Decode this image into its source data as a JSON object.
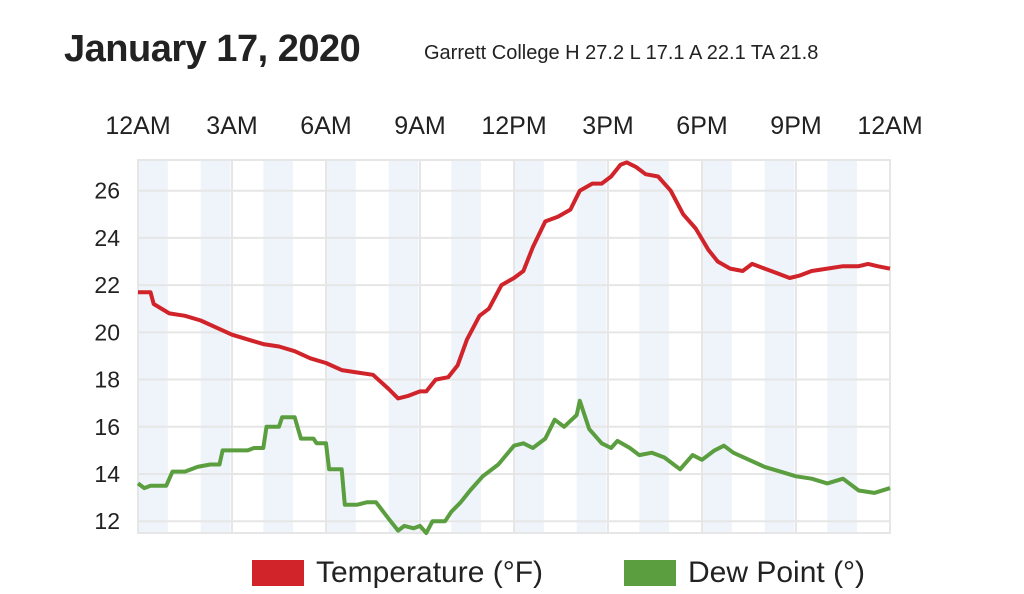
{
  "header": {
    "title": "January 17, 2020",
    "subtitle": "Garrett College H 27.2 L 17.1 A 22.1 TA 21.8"
  },
  "chart_data": {
    "type": "line",
    "title": "January 17, 2020",
    "subtitle": "Garrett College H 27.2 L 17.1 A 22.1 TA 21.8",
    "xlabel": "",
    "ylabel": "",
    "x_unit": "hour of day",
    "xlim": [
      0,
      24
    ],
    "ylim": [
      11.5,
      27.3
    ],
    "x_ticks": [
      "12AM",
      "3AM",
      "6AM",
      "9AM",
      "12PM",
      "3PM",
      "6PM",
      "9PM",
      "12AM"
    ],
    "y_ticks": [
      12,
      14,
      16,
      18,
      20,
      22,
      24,
      26
    ],
    "grid": true,
    "x_tick_position": "top",
    "legend_position": "bottom",
    "band_color": "#eef4fa",
    "series": [
      {
        "name": "Temperature (°F)",
        "color": "#d1232a",
        "x": [
          0,
          0.4,
          0.5,
          1,
          1.5,
          2,
          2.5,
          3,
          3.5,
          4,
          4.5,
          5,
          5.5,
          6,
          6.5,
          7,
          7.5,
          8,
          8.3,
          8.6,
          9,
          9.2,
          9.5,
          9.9,
          10.2,
          10.5,
          10.9,
          11.2,
          11.6,
          12,
          12.3,
          12.6,
          13,
          13.4,
          13.8,
          14.1,
          14.5,
          14.8,
          15.1,
          15.4,
          15.6,
          15.9,
          16.2,
          16.6,
          17,
          17.4,
          17.8,
          18.2,
          18.5,
          18.9,
          19.3,
          19.6,
          20,
          20.4,
          20.8,
          21.1,
          21.5,
          22,
          22.5,
          23,
          23.3,
          23.6,
          24
        ],
        "values": [
          21.7,
          21.7,
          21.2,
          20.8,
          20.7,
          20.5,
          20.2,
          19.9,
          19.7,
          19.5,
          19.4,
          19.2,
          18.9,
          18.7,
          18.4,
          18.3,
          18.2,
          17.6,
          17.2,
          17.3,
          17.5,
          17.5,
          18.0,
          18.1,
          18.6,
          19.7,
          20.7,
          21.0,
          22.0,
          22.3,
          22.6,
          23.6,
          24.7,
          24.9,
          25.2,
          26.0,
          26.3,
          26.3,
          26.6,
          27.1,
          27.2,
          27.0,
          26.7,
          26.6,
          26.0,
          25.0,
          24.4,
          23.5,
          23.0,
          22.7,
          22.6,
          22.9,
          22.7,
          22.5,
          22.3,
          22.4,
          22.6,
          22.7,
          22.8,
          22.8,
          22.9,
          22.8,
          22.7
        ]
      },
      {
        "name": "Dew Point (°)",
        "color": "#5a9e3f",
        "x": [
          0,
          0.2,
          0.4,
          0.9,
          1.1,
          1.5,
          1.9,
          2.3,
          2.6,
          2.7,
          3.5,
          3.7,
          4.0,
          4.1,
          4.5,
          4.6,
          5.0,
          5.2,
          5.6,
          5.7,
          6.0,
          6.1,
          6.5,
          6.6,
          7.0,
          7.3,
          7.6,
          8.0,
          8.3,
          8.5,
          8.8,
          9.0,
          9.2,
          9.4,
          9.8,
          10.0,
          10.3,
          10.6,
          11,
          11.5,
          12,
          12.3,
          12.6,
          13,
          13.3,
          13.6,
          14,
          14.1,
          14.4,
          14.8,
          15.1,
          15.3,
          15.7,
          16,
          16.4,
          16.8,
          17.3,
          17.7,
          18,
          18.4,
          18.7,
          19,
          19.5,
          20,
          20.5,
          21,
          21.5,
          22,
          22.5,
          23,
          23.5,
          24
        ],
        "values": [
          13.6,
          13.4,
          13.5,
          13.5,
          14.1,
          14.1,
          14.3,
          14.4,
          14.4,
          15.0,
          15.0,
          15.1,
          15.1,
          16.0,
          16.0,
          16.4,
          16.4,
          15.5,
          15.5,
          15.3,
          15.3,
          14.2,
          14.2,
          12.7,
          12.7,
          12.8,
          12.8,
          12.1,
          11.6,
          11.8,
          11.7,
          11.8,
          11.5,
          12.0,
          12.0,
          12.4,
          12.8,
          13.3,
          13.9,
          14.4,
          15.2,
          15.3,
          15.1,
          15.5,
          16.3,
          16.0,
          16.5,
          17.1,
          15.9,
          15.3,
          15.1,
          15.4,
          15.1,
          14.8,
          14.9,
          14.7,
          14.2,
          14.8,
          14.6,
          15.0,
          15.2,
          14.9,
          14.6,
          14.3,
          14.1,
          13.9,
          13.8,
          13.6,
          13.8,
          13.3,
          13.2,
          13.4
        ]
      }
    ]
  }
}
